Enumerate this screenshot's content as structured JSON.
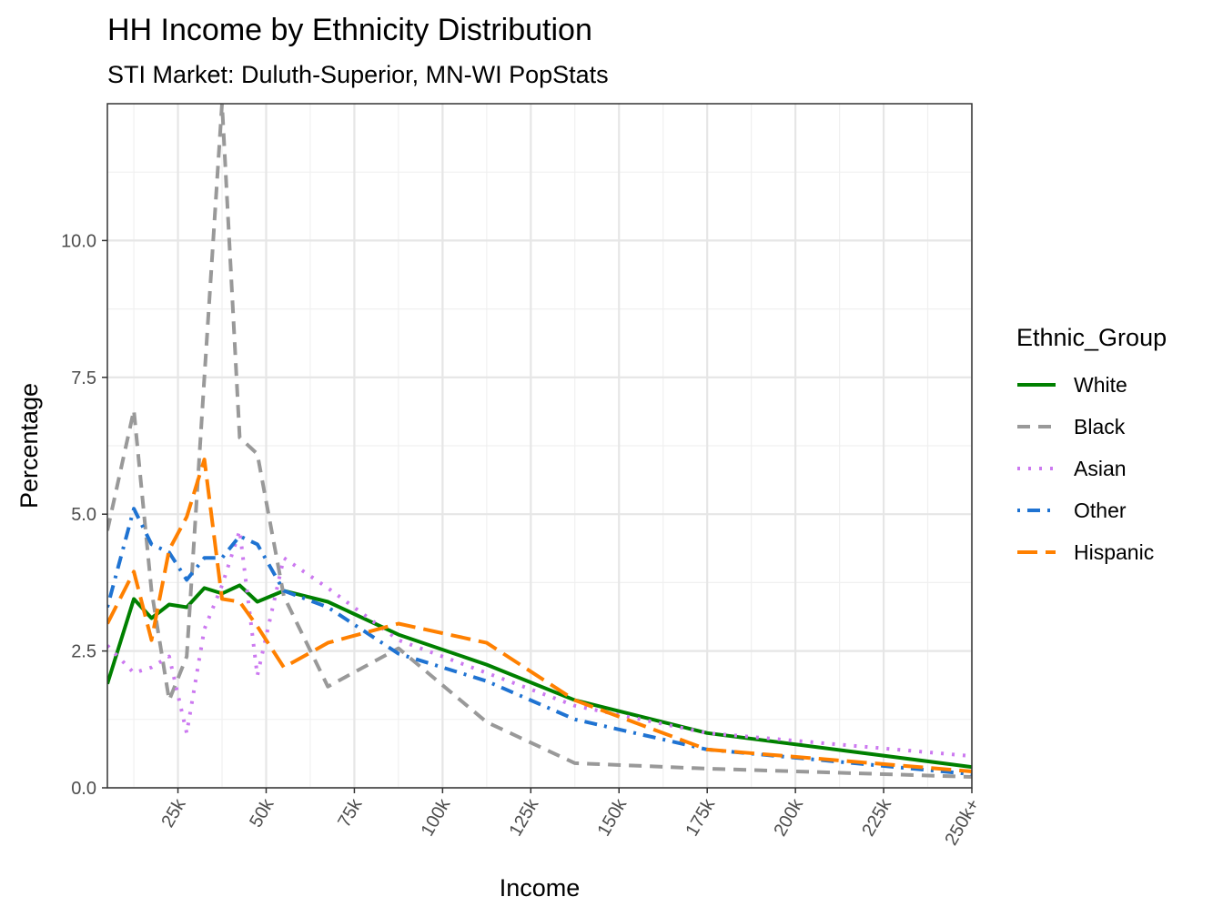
{
  "chart_data": {
    "type": "line",
    "title": "HH Income by Ethnicity Distribution",
    "subtitle": "STI Market: Duluth-Superior, MN-WI PopStats",
    "xlabel": "Income",
    "ylabel": "Percentage",
    "x_range": [
      5,
      250
    ],
    "ylim": [
      0,
      12.5
    ],
    "x_ticks": [
      {
        "value": 25,
        "label": "25k"
      },
      {
        "value": 50,
        "label": "50k"
      },
      {
        "value": 75,
        "label": "75k"
      },
      {
        "value": 100,
        "label": "100k"
      },
      {
        "value": 125,
        "label": "125k"
      },
      {
        "value": 150,
        "label": "150k"
      },
      {
        "value": 175,
        "label": "175k"
      },
      {
        "value": 200,
        "label": "200k"
      },
      {
        "value": 225,
        "label": "225k"
      },
      {
        "value": 250,
        "label": "250k+"
      }
    ],
    "y_ticks": [
      {
        "value": 0,
        "label": "0.0"
      },
      {
        "value": 2.5,
        "label": "2.5"
      },
      {
        "value": 5,
        "label": "5.0"
      },
      {
        "value": 7.5,
        "label": "7.5"
      },
      {
        "value": 10,
        "label": "10.0"
      }
    ],
    "grid": true,
    "legend_title": "Ethnic_Group",
    "legend_position": "right",
    "x": [
      5,
      12.5,
      17.5,
      22.5,
      27.5,
      32.5,
      37.5,
      42.5,
      47.5,
      55,
      67.5,
      87.5,
      112.5,
      137.5,
      175,
      250
    ],
    "series": [
      {
        "name": "White",
        "color": "#008000",
        "dash": "solid",
        "values": [
          1.9,
          3.45,
          3.1,
          3.35,
          3.3,
          3.65,
          3.55,
          3.7,
          3.4,
          3.6,
          3.4,
          2.8,
          2.25,
          1.6,
          1.0,
          0.38
        ]
      },
      {
        "name": "Black",
        "color": "#999999",
        "dash": "dashed",
        "values": [
          4.7,
          6.9,
          3.6,
          1.6,
          2.4,
          7.5,
          12.5,
          6.4,
          6.1,
          3.5,
          1.85,
          2.55,
          1.2,
          0.45,
          0.35,
          0.2
        ]
      },
      {
        "name": "Asian",
        "color": "#CC79F0",
        "dash": "dotted",
        "values": [
          2.6,
          2.1,
          2.2,
          2.4,
          1.0,
          2.9,
          3.7,
          4.7,
          2.05,
          4.2,
          3.65,
          2.7,
          2.1,
          1.5,
          1.0,
          0.58
        ]
      },
      {
        "name": "Other",
        "color": "#1F73D2",
        "dash": "dashdot",
        "values": [
          3.3,
          5.1,
          4.45,
          4.3,
          3.8,
          4.2,
          4.2,
          4.6,
          4.45,
          3.6,
          3.3,
          2.45,
          1.95,
          1.25,
          0.7,
          0.25
        ]
      },
      {
        "name": "Hispanic",
        "color": "#FF8000",
        "dash": "longdash",
        "values": [
          3.0,
          3.95,
          2.7,
          4.35,
          4.95,
          6.0,
          3.45,
          3.4,
          2.95,
          2.2,
          2.65,
          3.0,
          2.65,
          1.6,
          0.7,
          0.3
        ]
      }
    ]
  }
}
